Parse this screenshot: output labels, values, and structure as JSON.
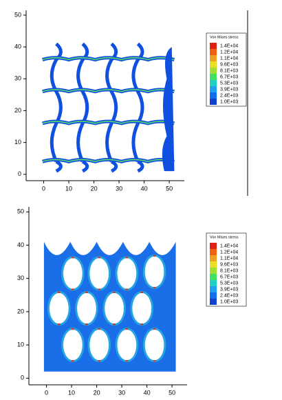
{
  "chart_data": [
    {
      "type": "lattice",
      "xlim": [
        -7,
        56
      ],
      "ylim": [
        -2,
        51.5
      ],
      "xticks": [
        0,
        10,
        20,
        30,
        40,
        50
      ],
      "yticks": [
        0,
        10,
        20,
        30,
        40,
        50
      ],
      "colorbar": {
        "title": "Von Mises stress",
        "ticks": [
          {
            "value": 14000,
            "label": "1.4E+04"
          },
          {
            "value": 12000,
            "label": "1.2E+04"
          },
          {
            "value": 11000,
            "label": "1.1E+04"
          },
          {
            "value": 9600,
            "label": "9.6E+03"
          },
          {
            "value": 8100,
            "label": "8.1E+03"
          },
          {
            "value": 6700,
            "label": "6.7E+03"
          },
          {
            "value": 5300,
            "label": "5.3E+03"
          },
          {
            "value": 3900,
            "label": "3.9E+03"
          },
          {
            "value": 2400,
            "label": "2.4E+03"
          },
          {
            "value": 1000,
            "label": "1.0E+03"
          }
        ],
        "colors": [
          "#e02010",
          "#f06010",
          "#f0a020",
          "#e8e020",
          "#a0e030",
          "#40e060",
          "#20d0c0",
          "#20a0f0",
          "#1070f0",
          "#1040d0"
        ]
      }
    },
    {
      "type": "holes",
      "xlim": [
        -7,
        56
      ],
      "ylim": [
        -2,
        51.5
      ],
      "xticks": [
        0,
        10,
        20,
        30,
        40,
        50
      ],
      "yticks": [
        0,
        10,
        20,
        30,
        40,
        50
      ],
      "colorbar": {
        "title": "Von Mises stress",
        "ticks": [
          {
            "value": 14000,
            "label": "1.4E+04"
          },
          {
            "value": 12000,
            "label": "1.2E+04"
          },
          {
            "value": 11000,
            "label": "1.1E+04"
          },
          {
            "value": 9600,
            "label": "9.6E+03"
          },
          {
            "value": 8100,
            "label": "8.1E+03"
          },
          {
            "value": 6700,
            "label": "6.7E+03"
          },
          {
            "value": 5300,
            "label": "5.3E+03"
          },
          {
            "value": 3900,
            "label": "3.9E+03"
          },
          {
            "value": 2400,
            "label": "2.4E+03"
          },
          {
            "value": 1000,
            "label": "1.0E+03"
          }
        ],
        "colors": [
          "#e02010",
          "#f06010",
          "#f0a020",
          "#e8e020",
          "#a0e030",
          "#40e060",
          "#20d0c0",
          "#20a0f0",
          "#1070f0",
          "#1040d0"
        ]
      }
    }
  ]
}
